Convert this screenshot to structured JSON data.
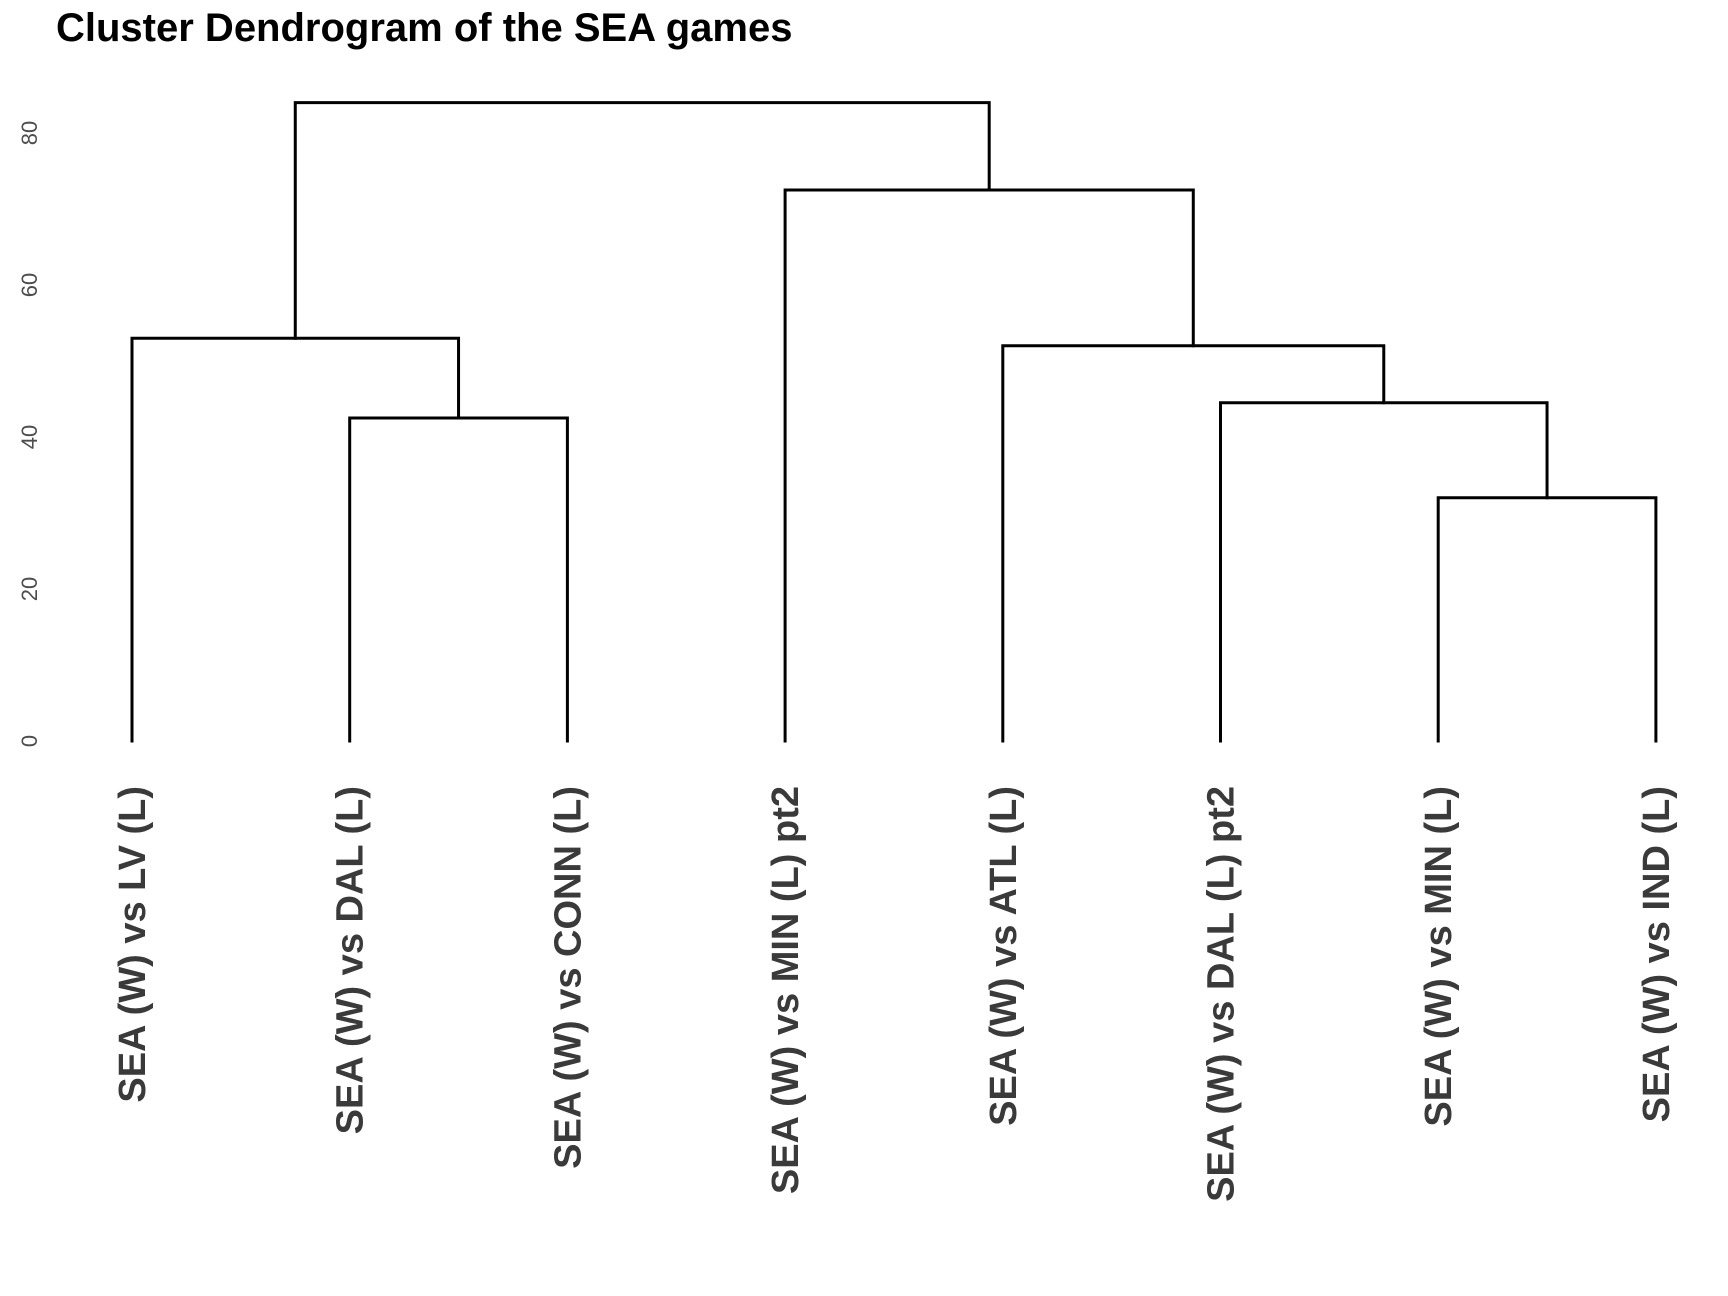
{
  "chart_data": {
    "type": "dendrogram",
    "title": "Cluster Dendrogram of the SEA games",
    "xlabel": "",
    "ylabel": "",
    "ylim": [
      0,
      85
    ],
    "y_ticks": [
      0,
      20,
      40,
      60,
      80
    ],
    "grid": false,
    "leaves": [
      "SEA (W) vs LV (L)",
      "SEA (W) vs DAL (L)",
      "SEA (W) vs CONN (L)",
      "SEA (W) vs MIN (L) pt2",
      "SEA (W) vs ATL (L)",
      "SEA (W) vs DAL (L) pt2",
      "SEA (W) vs MIN (L)",
      "SEA (W) vs IND (L)"
    ],
    "merges": [
      {
        "id": "m1",
        "left": "leaf:6",
        "right": "leaf:7",
        "height": 32
      },
      {
        "id": "m2",
        "left": "leaf:1",
        "right": "leaf:2",
        "height": 42.5
      },
      {
        "id": "m3",
        "left": "leaf:5",
        "right": "m1",
        "height": 44.5
      },
      {
        "id": "m4",
        "left": "leaf:4",
        "right": "m3",
        "height": 52
      },
      {
        "id": "m5",
        "left": "leaf:0",
        "right": "m2",
        "height": 53
      },
      {
        "id": "m6",
        "left": "leaf:3",
        "right": "m4",
        "height": 72.5
      },
      {
        "id": "m7",
        "left": "m5",
        "right": "m6",
        "height": 84
      }
    ]
  }
}
